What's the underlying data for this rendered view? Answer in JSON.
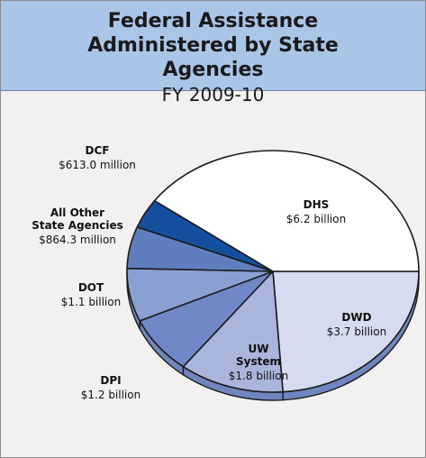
{
  "header": {
    "title": "Federal Assistance Administered by State Agencies",
    "subtitle": "FY 2009-10"
  },
  "chart_data": {
    "type": "pie",
    "title": "Federal Assistance Administered by State Agencies",
    "subtitle": "FY 2009-10",
    "slices": [
      {
        "name": "DHS",
        "value": 6.2,
        "label": "$6.2 billion",
        "color": "#ffffff"
      },
      {
        "name": "DWD",
        "value": 3.7,
        "label": "$3.7 billion",
        "color": "#d6dcf0"
      },
      {
        "name": "UW System",
        "name_lines": [
          "UW",
          "System"
        ],
        "value": 1.8,
        "label": "$1.8 billion",
        "color": "#a9b5dc"
      },
      {
        "name": "DPI",
        "value": 1.2,
        "label": "$1.2 billion",
        "color": "#7088c8"
      },
      {
        "name": "DOT",
        "value": 1.1,
        "label": "$1.1 billion",
        "color": "#8aa0d2"
      },
      {
        "name": "All Other State Agencies",
        "name_lines": [
          "All Other",
          "State Agencies"
        ],
        "value": 0.8643,
        "label": "$864.3 million",
        "color": "#5e7ec0"
      },
      {
        "name": "DCF",
        "value": 0.613,
        "label": "$613.0 million",
        "color": "#15509f"
      }
    ],
    "colors": {
      "outline": "#1a1a1a",
      "side": "#6f86c0"
    }
  }
}
